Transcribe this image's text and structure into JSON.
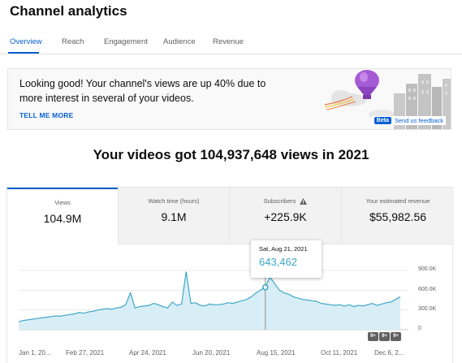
{
  "page": {
    "title": "Channel analytics"
  },
  "tabs": [
    {
      "label": "Overview",
      "active": true
    },
    {
      "label": "Reach"
    },
    {
      "label": "Engagement"
    },
    {
      "label": "Audience"
    },
    {
      "label": "Revenue"
    }
  ],
  "banner": {
    "message": "Looking good! Your channel's views are up 40% due to more interest in several of your videos.",
    "cta": "TELL ME MORE",
    "beta": "Beta",
    "feedback": "Send us feedback"
  },
  "headline": "Your videos got 104,937,648 views in 2021",
  "metrics": [
    {
      "label": "Views",
      "value": "104.9M",
      "selected": true
    },
    {
      "label": "Watch time (hours)",
      "value": "9.1M"
    },
    {
      "label": "Subscribers",
      "value": "+225.9K",
      "warning_icon": "warning-icon"
    },
    {
      "label": "Your estimated revenue",
      "value": "$55,982.56"
    }
  ],
  "tooltip": {
    "date": "Sat, Aug 21, 2021",
    "value": "643,462"
  },
  "badges": [
    "9+",
    "9+",
    "9+"
  ],
  "colors": {
    "accent": "#065fd4",
    "line": "#3ea6c8",
    "fill": "#d8eef6"
  },
  "chart_data": {
    "type": "area",
    "series": [
      {
        "values": [
          120000,
          140000,
          150000,
          160000,
          170000,
          180000,
          190000,
          200000,
          210000,
          205000,
          220000,
          230000,
          240000,
          260000,
          250000,
          270000,
          280000,
          300000,
          310000,
          320000,
          310000,
          330000,
          340000,
          380000,
          560000,
          330000,
          350000,
          360000,
          370000,
          400000,
          380000,
          350000,
          330000,
          420000,
          370000,
          390000,
          880000,
          400000,
          410000,
          370000,
          360000,
          390000,
          380000,
          380000,
          390000,
          410000,
          400000,
          420000,
          440000,
          460000,
          500000,
          560000,
          600000,
          650000,
          800000,
          700000,
          600000,
          560000,
          540000,
          500000,
          480000,
          460000,
          450000,
          440000,
          430000,
          400000,
          390000,
          380000,
          370000,
          380000,
          360000,
          380000,
          350000,
          370000,
          360000,
          380000,
          400000,
          370000,
          390000,
          410000,
          420000,
          460000,
          500000
        ]
      }
    ],
    "x_ticks": [
      "Jan 1, 20...",
      "Feb 27, 2021",
      "Apr 24, 2021",
      "Jun 20, 2021",
      "Aug 15, 2021",
      "Oct 11, 2021",
      "Dec 6, 2..."
    ],
    "y_ticks": [
      "900.0K",
      "600.0K",
      "300.0K",
      "0"
    ],
    "ylim": [
      0,
      900000
    ],
    "highlight": {
      "x": "Aug 21, 2021",
      "value": 643462
    }
  }
}
